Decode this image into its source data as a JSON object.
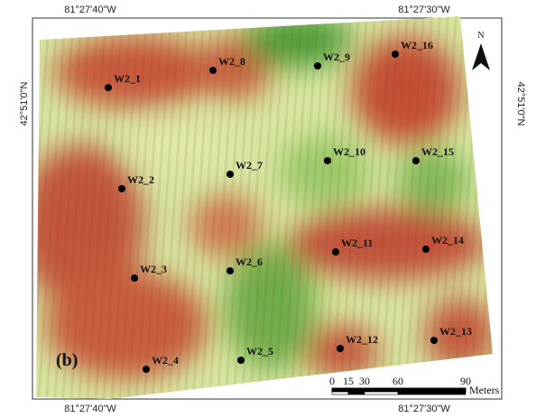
{
  "coordinates": {
    "top_left": "81°27'40\"W",
    "top_right": "81°27'30\"W",
    "bottom_left": "81°27'40\"W",
    "bottom_right": "81°27'30\"W",
    "left": "42°51'0\"N",
    "right": "42°51'0\"N"
  },
  "panel_label": "(b)",
  "north": "N",
  "wells": [
    "W2_1",
    "W2_8",
    "W2_9",
    "W2_16",
    "W2_2",
    "W2_7",
    "W2_10",
    "W2_15",
    "W2_3",
    "W2_6",
    "W2_11",
    "W2_14",
    "W2_4",
    "W2_5",
    "W2_12",
    "W2_13"
  ],
  "scale_bar": {
    "ticks": [
      "0",
      "15",
      "30",
      "60",
      "90"
    ],
    "unit": "Meters"
  }
}
